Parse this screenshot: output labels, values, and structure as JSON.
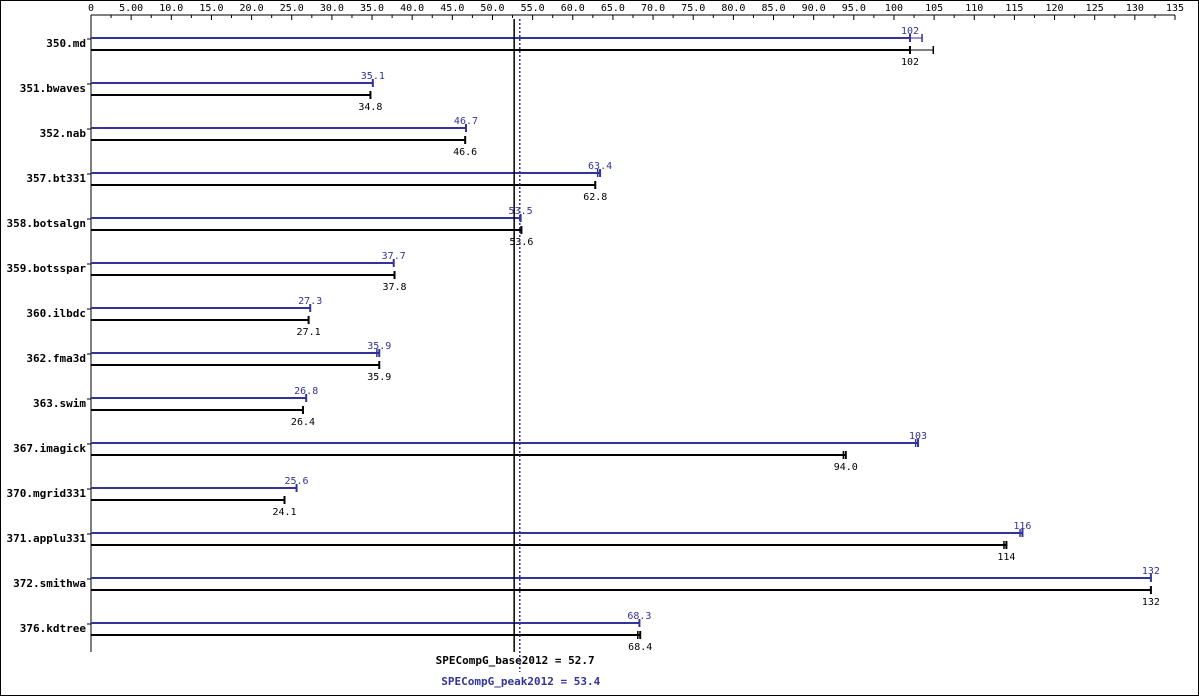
{
  "chart_data": {
    "type": "bar",
    "orientation": "horizontal",
    "x_ticks": [
      "0",
      "5.00",
      "10.0",
      "15.0",
      "20.0",
      "25.0",
      "30.0",
      "35.0",
      "40.0",
      "45.0",
      "50.0",
      "55.0",
      "60.0",
      "65.0",
      "70.0",
      "75.0",
      "80.0",
      "85.0",
      "90.0",
      "95.0",
      "100",
      "105",
      "110",
      "115",
      "120",
      "125",
      "130",
      "135"
    ],
    "xlim": [
      0,
      135
    ],
    "categories": [
      "350.md",
      "351.bwaves",
      "352.nab",
      "357.bt331",
      "358.botsalgn",
      "359.botsspar",
      "360.ilbdc",
      "362.fma3d",
      "363.swim",
      "367.imagick",
      "370.mgrid331",
      "371.applu331",
      "372.smithwa",
      "376.kdtree"
    ],
    "series": [
      {
        "name": "peak",
        "color": "#333399",
        "values": [
          102,
          35.1,
          46.7,
          63.4,
          53.5,
          37.7,
          27.3,
          35.9,
          26.8,
          103,
          25.6,
          116,
          132,
          68.3
        ],
        "labels": [
          "102",
          "35.1",
          "46.7",
          "63.4",
          "53.5",
          "37.7",
          "27.3",
          "35.9",
          "26.8",
          "103",
          "25.6",
          "116",
          "132",
          "68.3"
        ],
        "run_ranges": [
          [
            102,
            103.5
          ],
          [
            35.1,
            35.1
          ],
          [
            46.7,
            46.7
          ],
          [
            63.1,
            63.4
          ],
          [
            53.5,
            53.5
          ],
          [
            37.7,
            37.7
          ],
          [
            27.3,
            27.3
          ],
          [
            35.6,
            35.9
          ],
          [
            26.8,
            26.8
          ],
          [
            102.7,
            103
          ],
          [
            25.6,
            25.6
          ],
          [
            115.7,
            116
          ],
          [
            132,
            132
          ],
          [
            68.3,
            68.3
          ]
        ]
      },
      {
        "name": "base",
        "color": "#000000",
        "values": [
          102,
          34.8,
          46.6,
          62.8,
          53.6,
          37.8,
          27.1,
          35.9,
          26.4,
          94.0,
          24.1,
          114,
          132,
          68.4
        ],
        "labels": [
          "102",
          "34.8",
          "46.6",
          "62.8",
          "53.6",
          "37.8",
          "27.1",
          "35.9",
          "26.4",
          "94.0",
          "24.1",
          "114",
          "132",
          "68.4"
        ],
        "run_ranges": [
          [
            102,
            104.9
          ],
          [
            34.8,
            34.8
          ],
          [
            46.6,
            46.6
          ],
          [
            62.8,
            62.8
          ],
          [
            53.6,
            53.6
          ],
          [
            37.8,
            37.8
          ],
          [
            27.1,
            27.1
          ],
          [
            35.9,
            35.9
          ],
          [
            26.4,
            26.4
          ],
          [
            93.7,
            94.0
          ],
          [
            24.1,
            24.1
          ],
          [
            113.7,
            114
          ],
          [
            132,
            132
          ],
          [
            68.1,
            68.4
          ]
        ]
      }
    ],
    "reference_lines": [
      {
        "label": "SPECompG_base2012 = 52.7",
        "value": 52.7,
        "color": "#000000",
        "style": "solid"
      },
      {
        "label": "SPECompG_peak2012 = 53.4",
        "value": 53.4,
        "color": "#333399",
        "style": "dotted"
      }
    ],
    "grid": false,
    "legend": "none"
  }
}
